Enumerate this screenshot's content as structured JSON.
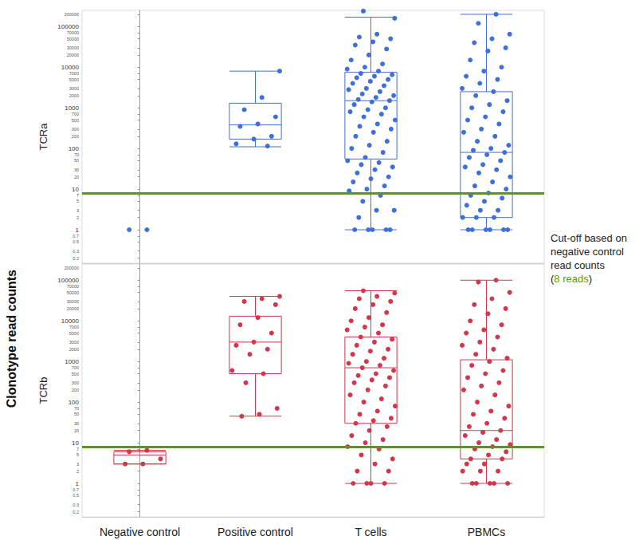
{
  "chart_data": {
    "type": "boxplot",
    "ylabel": "Clonotype read counts",
    "categories": [
      "Negative control",
      "Positive control",
      "T cells",
      "PBMCs"
    ],
    "log": "y",
    "grid": false,
    "marker": "circle",
    "ylim": [
      0.15,
      250000
    ],
    "yticks": [
      0.2,
      0.3,
      0.5,
      0.7,
      1,
      2,
      3,
      5,
      7,
      10,
      20,
      30,
      50,
      70,
      100,
      200,
      300,
      500,
      700,
      1000,
      2000,
      3000,
      5000,
      7000,
      10000,
      20000,
      30000,
      50000,
      70000,
      100000,
      200000
    ],
    "cutoff": {
      "value": 8,
      "color": "#5a9a08"
    },
    "annotations": [
      {
        "text": "Cut-off based on negative control read counts (8 reads)",
        "highlight": "8 reads"
      }
    ],
    "panels": [
      {
        "label": "TCRa",
        "color": "#3f6fd8",
        "boxes": [
          null,
          [
            110,
            170,
            380,
            1300,
            8000
          ],
          [
            1,
            55,
            1500,
            7500,
            170000
          ],
          [
            1,
            2,
            80,
            2500,
            200000
          ]
        ],
        "points": [
          [
            1,
            1
          ],
          [
            8000,
            1800,
            900,
            600,
            400,
            350,
            200,
            170,
            130,
            115
          ],
          [
            240000,
            160000,
            65000,
            55000,
            50000,
            42000,
            35000,
            28000,
            20000,
            15000,
            12000,
            10000,
            9000,
            8000,
            7000,
            6500,
            6000,
            5500,
            5000,
            4500,
            4000,
            3500,
            3000,
            2800,
            2500,
            2200,
            2000,
            1800,
            1600,
            1500,
            1400,
            1200,
            1000,
            900,
            800,
            700,
            600,
            500,
            400,
            350,
            300,
            250,
            200,
            150,
            120,
            100,
            80,
            60,
            50,
            45,
            40,
            35,
            30,
            25,
            20,
            18,
            15,
            12,
            10,
            9,
            7,
            5,
            3,
            3,
            2,
            1,
            1,
            1,
            1,
            1
          ],
          [
            200000,
            120000,
            65000,
            50000,
            40000,
            30000,
            25000,
            15000,
            10000,
            8000,
            6000,
            5000,
            4000,
            3000,
            2500,
            2000,
            1500,
            1200,
            1000,
            800,
            600,
            500,
            400,
            300,
            250,
            200,
            150,
            120,
            100,
            90,
            80,
            70,
            60,
            50,
            40,
            35,
            30,
            25,
            20,
            15,
            12,
            10,
            8,
            7,
            6,
            5,
            4,
            3,
            3,
            2,
            2,
            2,
            1,
            1,
            1,
            1,
            1,
            1
          ]
        ]
      },
      {
        "label": "TCRb",
        "color": "#d2374b",
        "boxes": [
          [
            3,
            3,
            5,
            6,
            6.5
          ],
          [
            45,
            500,
            3000,
            13000,
            40000
          ],
          [
            1,
            30,
            700,
            4000,
            55000
          ],
          [
            1,
            4,
            20,
            1100,
            100000
          ]
        ],
        "points": [
          [
            6.5,
            6,
            4,
            3,
            3
          ],
          [
            40000,
            35000,
            30000,
            25000,
            12000,
            8000,
            5000,
            3000,
            2500,
            2000,
            1500,
            600,
            500,
            300,
            70,
            50,
            45
          ],
          [
            55000,
            48000,
            40000,
            35000,
            30000,
            25000,
            20000,
            16000,
            12000,
            10000,
            8000,
            7000,
            6000,
            5000,
            4000,
            3500,
            3000,
            2500,
            2000,
            1800,
            1500,
            1200,
            1000,
            900,
            800,
            700,
            600,
            500,
            450,
            400,
            350,
            300,
            250,
            200,
            150,
            120,
            100,
            80,
            60,
            50,
            40,
            35,
            30,
            25,
            20,
            15,
            12,
            10,
            8,
            7,
            5,
            4,
            3,
            2,
            2,
            1,
            1,
            1,
            1
          ],
          [
            100000,
            90000,
            50000,
            35000,
            25000,
            20000,
            15000,
            10000,
            8000,
            6000,
            5000,
            4000,
            3000,
            2500,
            2000,
            1500,
            1200,
            1000,
            800,
            600,
            500,
            400,
            300,
            250,
            200,
            150,
            100,
            80,
            60,
            50,
            40,
            30,
            25,
            20,
            18,
            15,
            12,
            10,
            9,
            8,
            7,
            6,
            5,
            4,
            4,
            3,
            3,
            2,
            2,
            2,
            1,
            1,
            1,
            1,
            1
          ]
        ]
      }
    ]
  }
}
